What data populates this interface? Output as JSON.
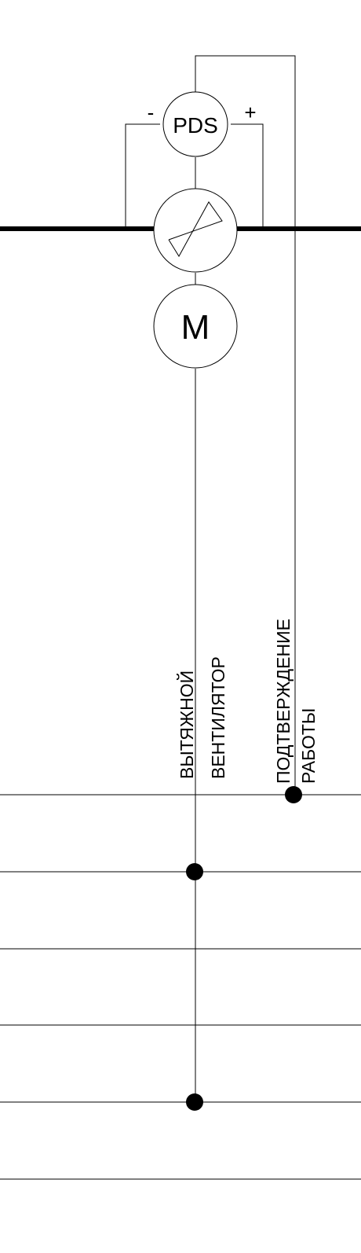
{
  "diagram": {
    "pressure_switch": {
      "label": "PDS",
      "minus_port": "-",
      "plus_port": "+"
    },
    "motor": {
      "label": "M"
    },
    "signals": {
      "fan_line1": "ВЫТЯЖНОЙ",
      "fan_line2": "ВЕНТИЛЯТОР",
      "confirm_line1": "ПОДТВЕРЖДЕНИЕ",
      "confirm_line2": "РАБОТЫ"
    }
  }
}
